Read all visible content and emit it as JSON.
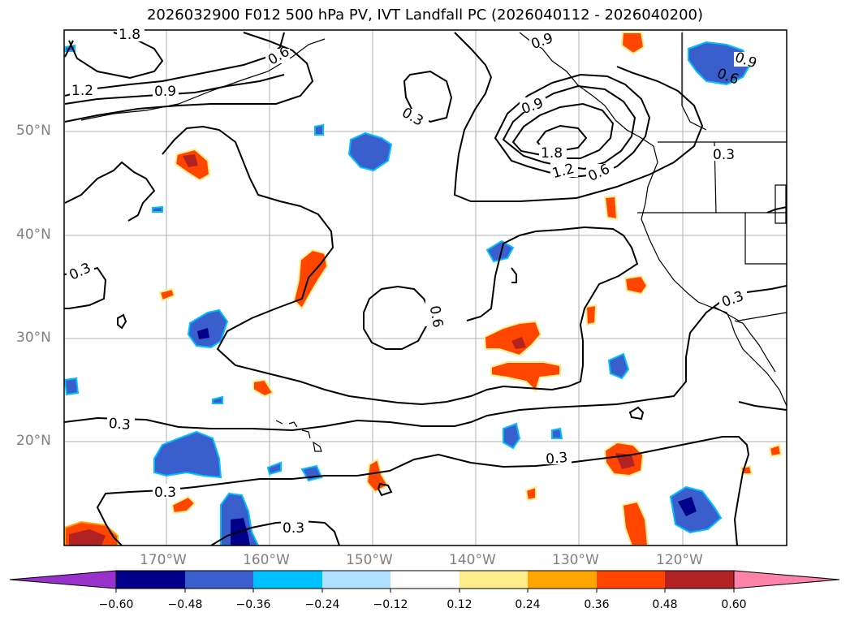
{
  "title": "2026032900 F012 500 hPa PV, IVT Landfall PC (2026040112 - 2026040200)",
  "lat_labels": [
    "50°N",
    "40°N",
    "30°N",
    "20°N"
  ],
  "lon_labels": [
    "170°W",
    "160°W",
    "150°W",
    "140°W",
    "130°W",
    "120°W"
  ],
  "contour_labels": [
    "1.8",
    "0.6",
    "1.2",
    "0.9",
    "0.3",
    "0.9",
    "0.9",
    "0.6",
    "0.9",
    "1.8",
    "1.2",
    "0.6",
    "0.3",
    "0.3",
    "0.6",
    "0.3",
    "0.3",
    "0.3",
    "0.3",
    "0.3"
  ],
  "colorbar": {
    "levels": [
      "−0.60",
      "−0.48",
      "−0.36",
      "−0.24",
      "−0.12",
      "0.12",
      "0.24",
      "0.36",
      "0.48",
      "0.60"
    ],
    "colors": [
      "#9932cc",
      "#00008b",
      "#3a5fcd",
      "#00bfff",
      "#b0e2ff",
      "#ffffff",
      "#ffec8b",
      "#ffa500",
      "#ff4500",
      "#b22222",
      "#ff82ab"
    ]
  }
}
